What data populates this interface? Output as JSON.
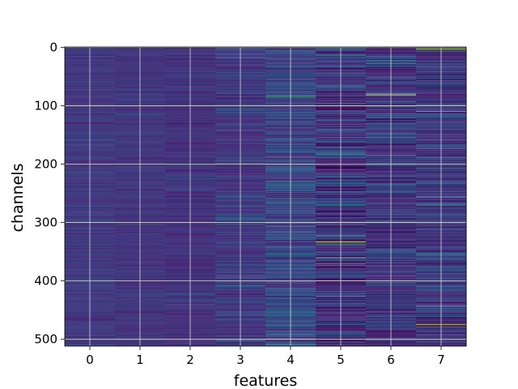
{
  "chart_data": {
    "type": "heatmap",
    "title": "",
    "xlabel": "features",
    "ylabel": "channels",
    "x_categories": [
      "0",
      "1",
      "2",
      "3",
      "4",
      "5",
      "6",
      "7"
    ],
    "y_ticks": [
      "0",
      "100",
      "200",
      "300",
      "400",
      "500"
    ],
    "rows": 512,
    "colormap": "viridis",
    "grid": true,
    "column_profiles": [
      {
        "feature": "0",
        "base": 0.17,
        "spread": 0.06
      },
      {
        "feature": "1",
        "base": 0.16,
        "spread": 0.05
      },
      {
        "feature": "2",
        "base": 0.15,
        "spread": 0.06
      },
      {
        "feature": "3",
        "base": 0.18,
        "spread": 0.1
      },
      {
        "feature": "4",
        "base": 0.22,
        "spread": 0.14
      },
      {
        "feature": "5",
        "base": 0.16,
        "spread": 0.18
      },
      {
        "feature": "6",
        "base": 0.17,
        "spread": 0.15
      },
      {
        "feature": "7",
        "base": 0.18,
        "spread": 0.16
      }
    ],
    "highlights": [
      {
        "feature": "4",
        "channel": 83,
        "value": 0.75
      },
      {
        "feature": "5",
        "channel": 333,
        "value": 0.95
      },
      {
        "feature": "5",
        "channel": 360,
        "value": 0.85
      },
      {
        "feature": "6",
        "channel": 80,
        "value": 0.95
      },
      {
        "feature": "6",
        "channel": 82,
        "value": 0.85
      },
      {
        "feature": "6",
        "channel": 185,
        "value": 0.7
      },
      {
        "feature": "7",
        "channel": 3,
        "value": 0.9
      },
      {
        "feature": "7",
        "channel": 110,
        "value": 0.75
      },
      {
        "feature": "7",
        "channel": 475,
        "value": 0.95
      },
      {
        "feature": "7",
        "channel": 443,
        "value": 0.75
      },
      {
        "feature": "7",
        "channel": 257,
        "value": 0.7
      }
    ]
  }
}
